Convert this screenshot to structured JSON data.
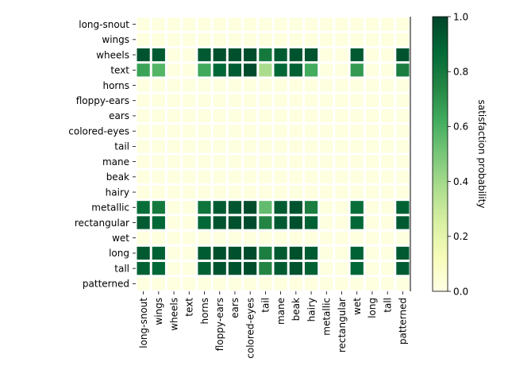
{
  "chart_data": {
    "type": "heatmap",
    "title": "",
    "xlabel": "",
    "ylabel": "",
    "x_labels": [
      "long-snout",
      "wings",
      "wheels",
      "text",
      "horns",
      "floppy-ears",
      "ears",
      "colored-eyes",
      "tail",
      "mane",
      "beak",
      "hairy",
      "metallic",
      "rectangular",
      "wet",
      "long",
      "tall",
      "patterned"
    ],
    "y_labels": [
      "long-snout",
      "wings",
      "wheels",
      "text",
      "horns",
      "floppy-ears",
      "ears",
      "colored-eyes",
      "tail",
      "mane",
      "beak",
      "hairy",
      "metallic",
      "rectangular",
      "wet",
      "long",
      "tall",
      "patterned"
    ],
    "values": [
      [
        0.02,
        0.02,
        0.02,
        0.02,
        0.02,
        0.02,
        0.02,
        0.02,
        0.02,
        0.02,
        0.02,
        0.02,
        0.02,
        0.02,
        0.02,
        0.02,
        0.02,
        0.02
      ],
      [
        0.02,
        0.02,
        0.02,
        0.02,
        0.02,
        0.02,
        0.02,
        0.02,
        0.02,
        0.02,
        0.02,
        0.02,
        0.02,
        0.02,
        0.02,
        0.02,
        0.02,
        0.02
      ],
      [
        0.95,
        0.92,
        0.02,
        0.02,
        0.93,
        0.96,
        0.96,
        0.97,
        0.8,
        0.92,
        0.95,
        0.95,
        0.02,
        0.02,
        0.93,
        0.02,
        0.02,
        0.95
      ],
      [
        0.65,
        0.58,
        0.02,
        0.02,
        0.63,
        0.88,
        0.92,
        0.98,
        0.38,
        0.88,
        0.9,
        0.62,
        0.02,
        0.02,
        0.68,
        0.02,
        0.02,
        0.78
      ],
      [
        0.02,
        0.02,
        0.02,
        0.02,
        0.02,
        0.02,
        0.02,
        0.02,
        0.02,
        0.02,
        0.02,
        0.02,
        0.02,
        0.02,
        0.02,
        0.02,
        0.02,
        0.02
      ],
      [
        0.02,
        0.02,
        0.02,
        0.02,
        0.02,
        0.02,
        0.02,
        0.02,
        0.02,
        0.02,
        0.02,
        0.02,
        0.02,
        0.02,
        0.02,
        0.02,
        0.02,
        0.02
      ],
      [
        0.02,
        0.02,
        0.02,
        0.02,
        0.02,
        0.02,
        0.02,
        0.02,
        0.02,
        0.02,
        0.02,
        0.02,
        0.02,
        0.02,
        0.02,
        0.02,
        0.02,
        0.02
      ],
      [
        0.02,
        0.02,
        0.02,
        0.02,
        0.02,
        0.02,
        0.02,
        0.02,
        0.02,
        0.02,
        0.02,
        0.02,
        0.02,
        0.02,
        0.02,
        0.02,
        0.02,
        0.02
      ],
      [
        0.02,
        0.02,
        0.02,
        0.02,
        0.02,
        0.02,
        0.02,
        0.02,
        0.02,
        0.02,
        0.02,
        0.02,
        0.02,
        0.02,
        0.02,
        0.02,
        0.02,
        0.02
      ],
      [
        0.02,
        0.02,
        0.02,
        0.02,
        0.02,
        0.02,
        0.02,
        0.02,
        0.02,
        0.02,
        0.02,
        0.02,
        0.02,
        0.02,
        0.02,
        0.02,
        0.02,
        0.02
      ],
      [
        0.02,
        0.02,
        0.02,
        0.02,
        0.02,
        0.02,
        0.02,
        0.02,
        0.02,
        0.02,
        0.02,
        0.02,
        0.02,
        0.02,
        0.02,
        0.02,
        0.02,
        0.02
      ],
      [
        0.02,
        0.02,
        0.02,
        0.02,
        0.02,
        0.02,
        0.02,
        0.02,
        0.02,
        0.02,
        0.02,
        0.02,
        0.02,
        0.02,
        0.02,
        0.02,
        0.02,
        0.02
      ],
      [
        0.85,
        0.8,
        0.02,
        0.02,
        0.82,
        0.92,
        0.94,
        0.97,
        0.55,
        0.92,
        0.95,
        0.78,
        0.02,
        0.02,
        0.85,
        0.02,
        0.02,
        0.9
      ],
      [
        0.92,
        0.88,
        0.02,
        0.02,
        0.88,
        0.95,
        0.96,
        0.98,
        0.75,
        0.93,
        0.96,
        0.9,
        0.02,
        0.02,
        0.88,
        0.02,
        0.02,
        0.93
      ],
      [
        0.02,
        0.02,
        0.02,
        0.02,
        0.02,
        0.02,
        0.02,
        0.02,
        0.02,
        0.02,
        0.02,
        0.02,
        0.02,
        0.02,
        0.02,
        0.02,
        0.02,
        0.02
      ],
      [
        0.93,
        0.9,
        0.02,
        0.02,
        0.92,
        0.96,
        0.96,
        0.98,
        0.78,
        0.93,
        0.96,
        0.92,
        0.02,
        0.02,
        0.9,
        0.02,
        0.02,
        0.93
      ],
      [
        0.9,
        0.88,
        0.02,
        0.02,
        0.9,
        0.95,
        0.95,
        0.97,
        0.75,
        0.92,
        0.95,
        0.9,
        0.02,
        0.02,
        0.88,
        0.02,
        0.02,
        0.92
      ],
      [
        0.02,
        0.02,
        0.02,
        0.02,
        0.02,
        0.02,
        0.02,
        0.02,
        0.02,
        0.02,
        0.02,
        0.02,
        0.02,
        0.02,
        0.02,
        0.02,
        0.02,
        0.02
      ]
    ],
    "vmin": 0.0,
    "vmax": 1.0,
    "colormap": "YlGn",
    "colormap_stops": [
      "#ffffe5",
      "#f7fcb9",
      "#d9f0a3",
      "#addd8e",
      "#78c679",
      "#41ab5d",
      "#238443",
      "#006837",
      "#004529"
    ],
    "colorbar": {
      "label": "satisfaction probability",
      "ticks": [
        "0.0",
        "0.2",
        "0.4",
        "0.6",
        "0.8",
        "1.0"
      ]
    },
    "grid": false,
    "cell_edge_color": "#ffffff"
  }
}
